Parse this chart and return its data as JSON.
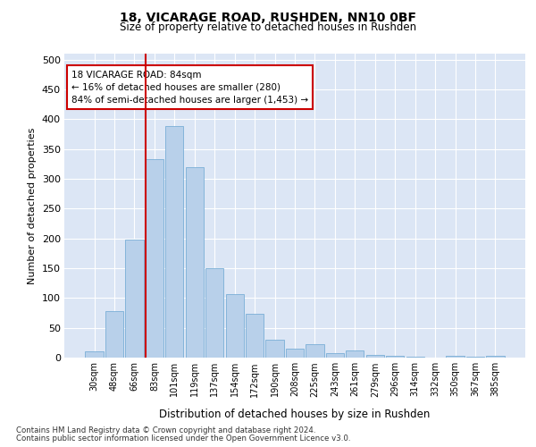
{
  "title1": "18, VICARAGE ROAD, RUSHDEN, NN10 0BF",
  "title2": "Size of property relative to detached houses in Rushden",
  "xlabel": "Distribution of detached houses by size in Rushden",
  "ylabel": "Number of detached properties",
  "categories": [
    "30sqm",
    "48sqm",
    "66sqm",
    "83sqm",
    "101sqm",
    "119sqm",
    "137sqm",
    "154sqm",
    "172sqm",
    "190sqm",
    "208sqm",
    "225sqm",
    "243sqm",
    "261sqm",
    "279sqm",
    "296sqm",
    "314sqm",
    "332sqm",
    "350sqm",
    "367sqm",
    "385sqm"
  ],
  "values": [
    10,
    78,
    198,
    333,
    388,
    320,
    150,
    107,
    73,
    30,
    15,
    22,
    8,
    12,
    5,
    3,
    1,
    0,
    3,
    1,
    3
  ],
  "bar_color": "#b8d0ea",
  "bar_edge_color": "#7aaed6",
  "vline_index": 3,
  "vline_color": "#cc0000",
  "annotation_line1": "18 VICARAGE ROAD: 84sqm",
  "annotation_line2": "← 16% of detached houses are smaller (280)",
  "annotation_line3": "84% of semi-detached houses are larger (1,453) →",
  "annotation_box_color": "#ffffff",
  "annotation_box_edge": "#cc0000",
  "plot_bg_color": "#dce6f5",
  "footer1": "Contains HM Land Registry data © Crown copyright and database right 2024.",
  "footer2": "Contains public sector information licensed under the Open Government Licence v3.0.",
  "ylim": [
    0,
    510
  ],
  "yticks": [
    0,
    50,
    100,
    150,
    200,
    250,
    300,
    350,
    400,
    450,
    500
  ]
}
